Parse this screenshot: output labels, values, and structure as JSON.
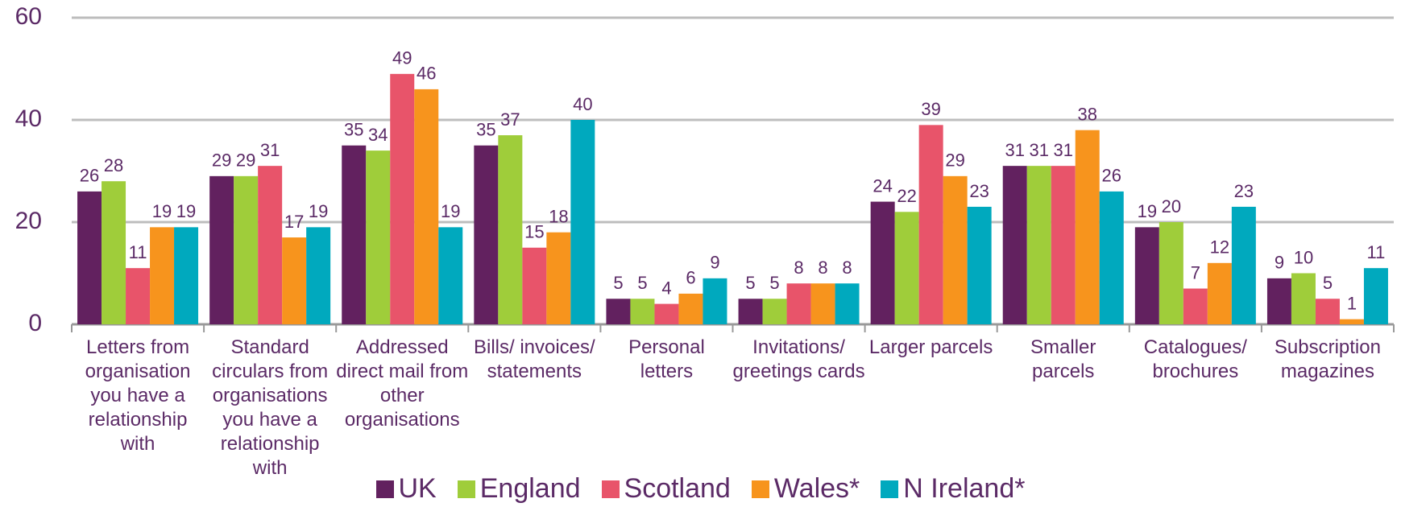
{
  "chart_data": {
    "type": "bar",
    "categories": [
      "Letters from organisation you have a relationship with",
      "Standard circulars from organisations you have a relationship with",
      "Addressed direct mail from other organisations",
      "Bills/ invoices/ statements",
      "Personal letters",
      "Invitations/ greetings cards",
      "Larger parcels",
      "Smaller parcels",
      "Catalogues/ brochures",
      "Subscription magazines"
    ],
    "series": [
      {
        "name": "UK",
        "color": "#62215f",
        "values": [
          26,
          29,
          35,
          35,
          5,
          5,
          24,
          31,
          19,
          9
        ]
      },
      {
        "name": "England",
        "color": "#9fcd3a",
        "values": [
          28,
          29,
          34,
          37,
          5,
          5,
          22,
          31,
          20,
          10
        ]
      },
      {
        "name": "Scotland",
        "color": "#e8546a",
        "values": [
          11,
          31,
          49,
          15,
          4,
          8,
          39,
          31,
          7,
          5
        ]
      },
      {
        "name": "Wales*",
        "color": "#f7941d",
        "values": [
          19,
          17,
          46,
          18,
          6,
          8,
          29,
          38,
          12,
          1
        ]
      },
      {
        "name": "N Ireland*",
        "color": "#00a9be",
        "values": [
          19,
          19,
          19,
          40,
          9,
          8,
          23,
          26,
          23,
          11
        ]
      }
    ],
    "ylim": [
      0,
      60
    ],
    "yticks": [
      0,
      20,
      40,
      60
    ],
    "grid": true,
    "legend": "bottom"
  }
}
